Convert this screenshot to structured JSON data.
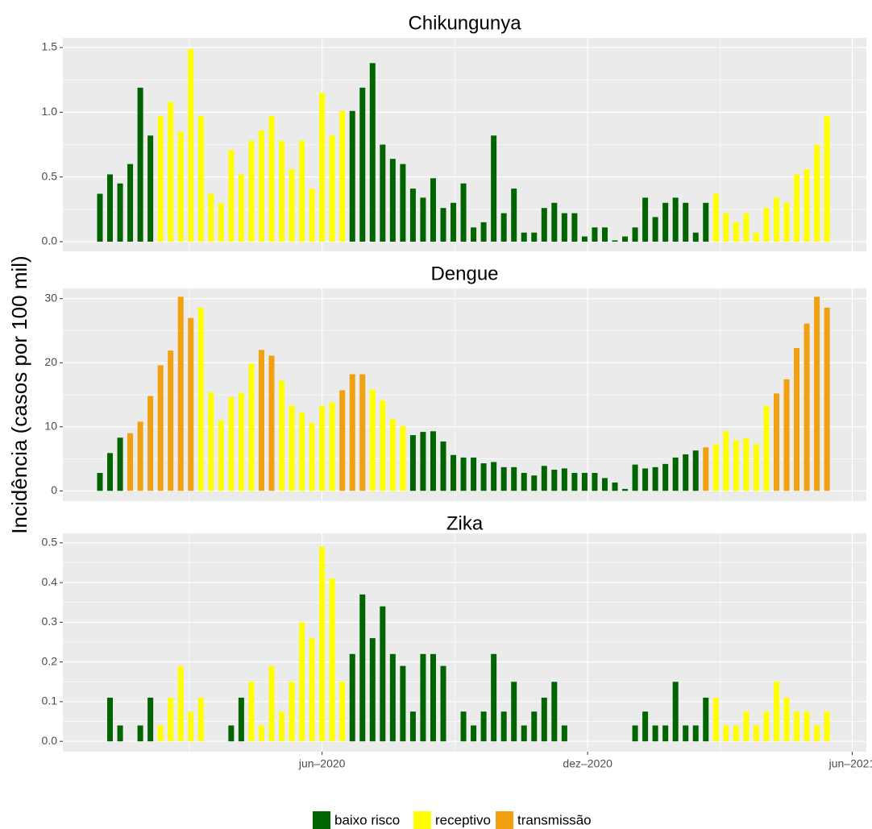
{
  "y_label": "Incidência (casos por 100 mil)",
  "chart_data": [
    {
      "type": "bar",
      "title": "Chikungunya",
      "categories": [
        null,
        null,
        null,
        null,
        null,
        null,
        null,
        null,
        null,
        null,
        null,
        null,
        null,
        null,
        null,
        null,
        null,
        null,
        null,
        null,
        null,
        null,
        null,
        null,
        null,
        null,
        null,
        null,
        null,
        null,
        null,
        null,
        null,
        null,
        null,
        null,
        null,
        null,
        null,
        null,
        null,
        null,
        null,
        null,
        null,
        null,
        null,
        null,
        null,
        null,
        null,
        null,
        null,
        null,
        null,
        null,
        null,
        null,
        null,
        null,
        null,
        null,
        null,
        null,
        null,
        null,
        null,
        null,
        null,
        null,
        null,
        null,
        null
      ],
      "series": [
        {
          "name": "baixo risco",
          "color": "#006400",
          "values": [
            0.37,
            0.52,
            0.45,
            0.6,
            1.19,
            0.82,
            null,
            null,
            null,
            null,
            null,
            null,
            null,
            null,
            null,
            null,
            null,
            null,
            null,
            null,
            null,
            null,
            null,
            null,
            null,
            1.01,
            1.19,
            1.38,
            0.75,
            0.64,
            0.6,
            0.41,
            0.34,
            0.49,
            0.26,
            0.3,
            0.45,
            0.11,
            0.15,
            0.82,
            0.22,
            0.41,
            0.07,
            0.07,
            0.26,
            0.3,
            0.22,
            0.22,
            0.04,
            0.11,
            0.11,
            0.01,
            0.04,
            0.11,
            0.34,
            0.19,
            0.3,
            0.34,
            0.3,
            0.07,
            0.3,
            null,
            null,
            null,
            null,
            null,
            null,
            null,
            null,
            null,
            null,
            null,
            null
          ]
        },
        {
          "name": "receptivo",
          "color": "#FFFF00",
          "values": [
            null,
            null,
            null,
            null,
            null,
            null,
            0.97,
            1.08,
            0.85,
            1.49,
            0.97,
            0.37,
            0.3,
            0.71,
            0.52,
            0.78,
            0.86,
            0.97,
            0.78,
            0.56,
            0.78,
            0.41,
            1.15,
            0.82,
            1.01,
            null,
            null,
            null,
            null,
            null,
            null,
            null,
            null,
            null,
            null,
            null,
            null,
            null,
            null,
            null,
            null,
            null,
            null,
            null,
            null,
            null,
            null,
            null,
            null,
            null,
            null,
            null,
            null,
            null,
            null,
            null,
            null,
            null,
            null,
            null,
            null,
            0.37,
            0.22,
            0.15,
            0.22,
            0.07,
            0.26,
            0.34,
            0.3,
            0.52,
            0.56,
            0.75,
            0.97
          ]
        }
      ],
      "ylim": [
        -0.075,
        1.575
      ],
      "yticks": [
        {
          "value": 0,
          "label": "0.0"
        },
        {
          "value": 0.5,
          "label": "0.5"
        },
        {
          "value": 1,
          "label": "1.0"
        },
        {
          "value": 1.5,
          "label": "1.5"
        }
      ],
      "grid": true
    },
    {
      "type": "bar",
      "title": "Dengue",
      "categories": [
        null,
        null,
        null,
        null,
        null,
        null,
        null,
        null,
        null,
        null,
        null,
        null,
        null,
        null,
        null,
        null,
        null,
        null,
        null,
        null,
        null,
        null,
        null,
        null,
        null,
        null,
        null,
        null,
        null,
        null,
        null,
        null,
        null,
        null,
        null,
        null,
        null,
        null,
        null,
        null,
        null,
        null,
        null,
        null,
        null,
        null,
        null,
        null,
        null,
        null,
        null,
        null,
        null,
        null,
        null,
        null,
        null,
        null,
        null,
        null,
        null,
        null,
        null,
        null,
        null,
        null,
        null,
        null,
        null,
        null,
        null,
        null,
        null
      ],
      "series": [
        {
          "name": "baixo risco",
          "color": "#006400",
          "values": [
            2.8,
            5.9,
            8.3,
            null,
            null,
            null,
            null,
            null,
            null,
            null,
            null,
            null,
            null,
            null,
            null,
            null,
            null,
            null,
            null,
            null,
            null,
            null,
            null,
            null,
            null,
            null,
            null,
            null,
            null,
            null,
            null,
            8.7,
            9.2,
            9.3,
            7.7,
            5.6,
            5.2,
            5.2,
            4.3,
            4.5,
            3.7,
            3.7,
            2.8,
            2.4,
            3.9,
            3.3,
            3.5,
            2.8,
            2.8,
            2.8,
            2.0,
            1.3,
            0.3,
            4.1,
            3.5,
            3.7,
            4.2,
            5.2,
            5.7,
            6.3,
            null,
            null,
            null,
            null,
            null,
            null,
            null,
            null,
            null,
            null,
            null,
            null,
            null
          ]
        },
        {
          "name": "receptivo",
          "color": "#FFFF00",
          "values": [
            null,
            null,
            null,
            null,
            null,
            null,
            null,
            null,
            null,
            null,
            28.6,
            15.4,
            11.0,
            14.6,
            15.3,
            19.9,
            null,
            null,
            17.2,
            13.3,
            12.2,
            10.6,
            13.3,
            13.8,
            null,
            null,
            null,
            15.8,
            14.1,
            11.2,
            10.1,
            null,
            null,
            null,
            null,
            null,
            null,
            null,
            null,
            null,
            null,
            null,
            null,
            null,
            null,
            null,
            null,
            null,
            null,
            null,
            null,
            null,
            null,
            null,
            null,
            null,
            null,
            null,
            null,
            null,
            null,
            7.3,
            9.3,
            7.9,
            8.2,
            7.3,
            13.3,
            null,
            null,
            null,
            null,
            null,
            null
          ]
        },
        {
          "name": "transmissão",
          "color": "#F0A010",
          "values": [
            null,
            null,
            null,
            9.0,
            10.8,
            14.8,
            19.6,
            21.9,
            30.3,
            27.0,
            null,
            null,
            null,
            null,
            null,
            null,
            22.0,
            21.1,
            null,
            null,
            null,
            null,
            null,
            null,
            15.7,
            18.2,
            18.2,
            null,
            null,
            null,
            null,
            null,
            null,
            null,
            null,
            null,
            null,
            null,
            null,
            null,
            null,
            null,
            null,
            null,
            null,
            null,
            null,
            null,
            null,
            null,
            null,
            null,
            null,
            null,
            null,
            null,
            null,
            null,
            null,
            null,
            6.8,
            null,
            null,
            null,
            null,
            null,
            null,
            15.2,
            17.4,
            22.3,
            26.1,
            30.3,
            28.6
          ]
        }
      ],
      "ylim": [
        -1.6,
        31.6
      ],
      "yticks": [
        0,
        10,
        20,
        30
      ],
      "grid": true
    },
    {
      "type": "bar",
      "title": "Zika",
      "categories": [
        null,
        null,
        null,
        null,
        null,
        null,
        null,
        null,
        null,
        null,
        null,
        null,
        null,
        null,
        null,
        null,
        null,
        null,
        null,
        null,
        null,
        null,
        null,
        null,
        null,
        null,
        null,
        null,
        null,
        null,
        null,
        null,
        null,
        null,
        null,
        null,
        null,
        null,
        null,
        null,
        null,
        null,
        null,
        null,
        null,
        null,
        null,
        null,
        null,
        null,
        null,
        null,
        null,
        null,
        null,
        null,
        null,
        null,
        null,
        null,
        null,
        null,
        null,
        null,
        null,
        null,
        null,
        null,
        null,
        null,
        null,
        null,
        null
      ],
      "series": [
        {
          "name": "baixo risco",
          "color": "#006400",
          "values": [
            0,
            0.11,
            0.04,
            0,
            0.04,
            0.11,
            null,
            null,
            null,
            null,
            null,
            0,
            0,
            0.04,
            0.11,
            null,
            null,
            null,
            null,
            null,
            null,
            null,
            null,
            null,
            null,
            0.22,
            0.37,
            0.26,
            0.34,
            0.22,
            0.19,
            0.075,
            0.22,
            0.22,
            0.19,
            0,
            0.075,
            0.04,
            0.075,
            0.22,
            0.075,
            0.15,
            0.04,
            0.075,
            0.11,
            0.15,
            0.04,
            0,
            0,
            0,
            0,
            0,
            0,
            0.04,
            0.075,
            0.04,
            0.04,
            0.15,
            0.04,
            0.04,
            0.11,
            null,
            null,
            null,
            null,
            null,
            null,
            null,
            null,
            null,
            null,
            null,
            null
          ]
        },
        {
          "name": "receptivo",
          "color": "#FFFF00",
          "values": [
            null,
            null,
            null,
            null,
            null,
            null,
            0.04,
            0.11,
            0.19,
            0.075,
            0.11,
            null,
            null,
            null,
            null,
            0.15,
            0.04,
            0.19,
            0.075,
            0.15,
            0.3,
            0.26,
            0.49,
            0.41,
            0.15,
            null,
            null,
            null,
            null,
            null,
            null,
            null,
            null,
            null,
            null,
            null,
            null,
            null,
            null,
            null,
            null,
            null,
            null,
            null,
            null,
            null,
            null,
            null,
            null,
            null,
            null,
            null,
            null,
            null,
            null,
            null,
            null,
            null,
            null,
            null,
            null,
            0.11,
            0.04,
            0.04,
            0.075,
            0.04,
            0.075,
            0.15,
            0.11,
            0.075,
            0.075,
            0.04,
            0.075
          ]
        }
      ],
      "ylim": [
        -0.026,
        0.524
      ],
      "yticks": [
        {
          "value": 0,
          "label": "0.0"
        },
        {
          "value": 0.1,
          "label": "0.1"
        },
        {
          "value": 0.2,
          "label": "0.2"
        },
        {
          "value": 0.3,
          "label": "0.3"
        },
        {
          "value": 0.4,
          "label": "0.4"
        },
        {
          "value": 0.5,
          "label": "0.5"
        }
      ],
      "xlim": [
        -3.67,
        75.9
      ],
      "xticks": [
        {
          "value": 22,
          "label": "jun–2020"
        },
        {
          "value": 48.3,
          "label": "dez–2020"
        },
        {
          "value": 74.5,
          "label": "jun–2021"
        }
      ],
      "grid": true
    }
  ]
}
